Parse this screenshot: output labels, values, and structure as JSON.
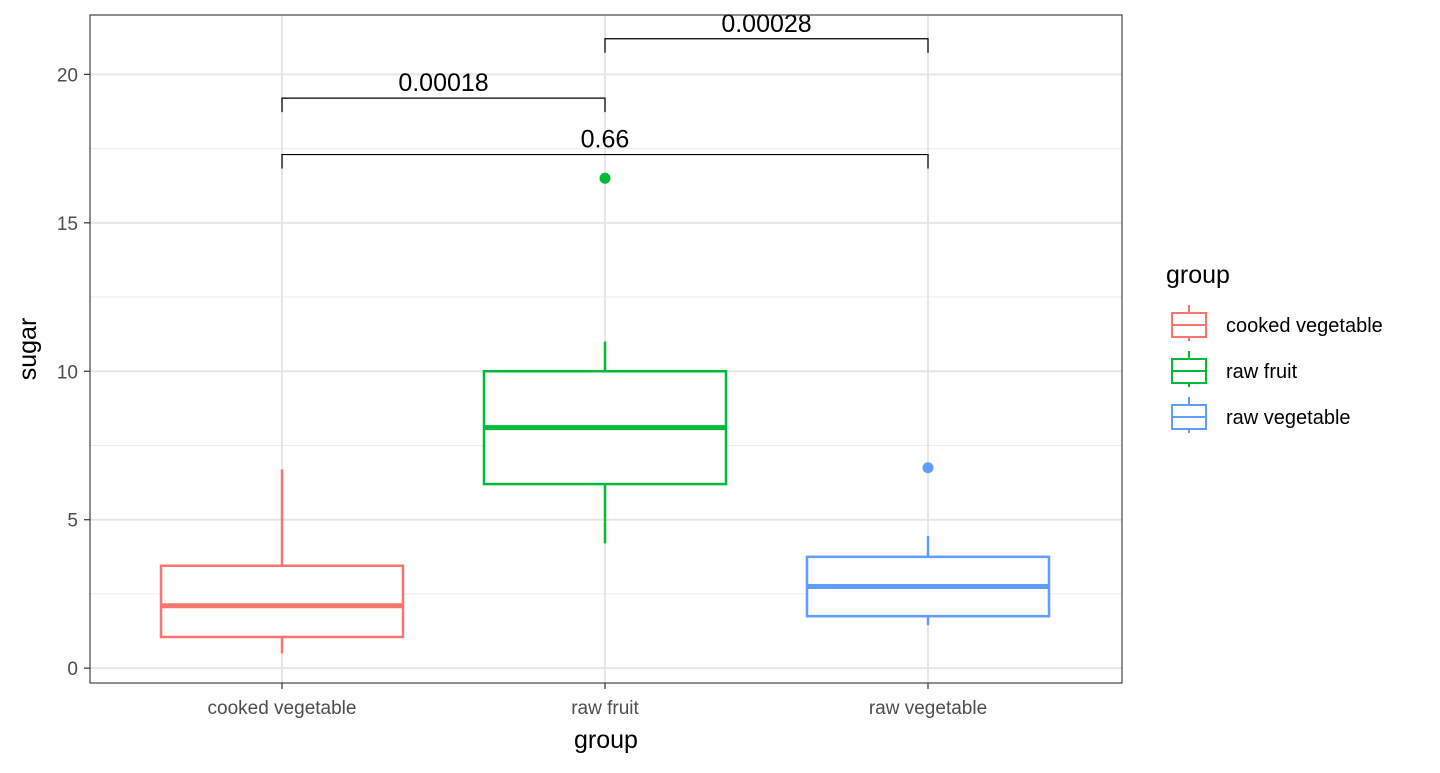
{
  "chart_data": {
    "type": "box",
    "title": "",
    "xlabel": "group",
    "ylabel": "sugar",
    "ylim": [
      -0.5,
      22
    ],
    "yticks": [
      0,
      5,
      10,
      15,
      20
    ],
    "categories": [
      "cooked vegetable",
      "raw fruit",
      "raw vegetable"
    ],
    "grid": true,
    "legend": {
      "title": "group",
      "position": "right",
      "entries": [
        "cooked vegetable",
        "raw fruit",
        "raw vegetable"
      ]
    },
    "series": [
      {
        "name": "cooked vegetable",
        "color": "#F8766D",
        "whisker_low": 0.5,
        "q1": 1.05,
        "median": 2.1,
        "q3": 3.45,
        "whisker_high": 6.7,
        "outliers": []
      },
      {
        "name": "raw fruit",
        "color": "#00BA38",
        "whisker_low": 4.2,
        "q1": 6.2,
        "median": 8.1,
        "q3": 10.0,
        "whisker_high": 11.0,
        "outliers": [
          16.5
        ]
      },
      {
        "name": "raw vegetable",
        "color": "#619CFF",
        "whisker_low": 1.45,
        "q1": 1.75,
        "median": 2.75,
        "q3": 3.75,
        "whisker_high": 4.45,
        "outliers": [
          6.75
        ]
      }
    ],
    "comparisons": [
      {
        "from": "cooked vegetable",
        "to": "raw fruit",
        "label": "0.00018",
        "y": 19.2
      },
      {
        "from": "raw fruit",
        "to": "raw vegetable",
        "label": "0.00028",
        "y": 21.2
      },
      {
        "from": "cooked vegetable",
        "to": "raw vegetable",
        "label": "0.66",
        "y": 17.3
      }
    ]
  }
}
